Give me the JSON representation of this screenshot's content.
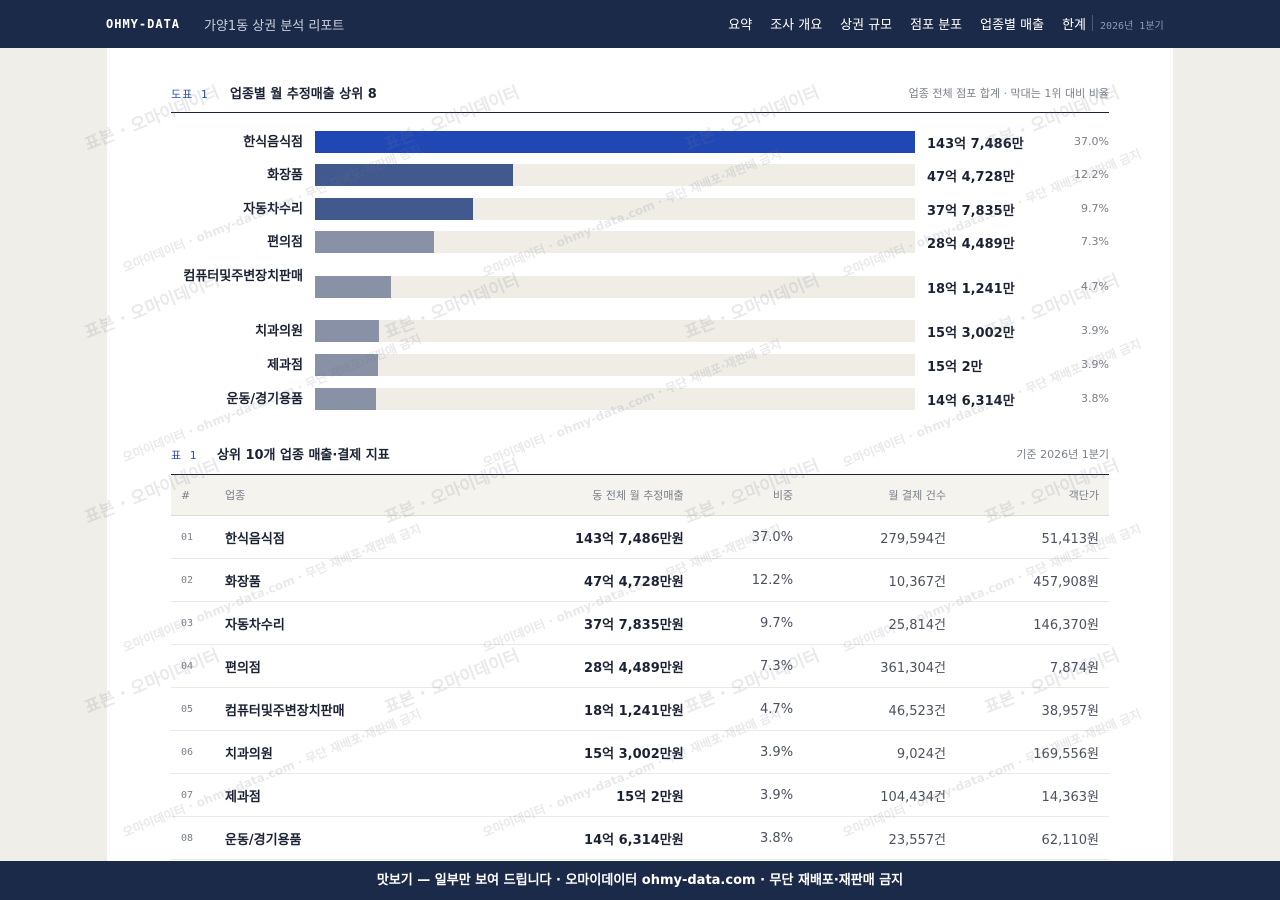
{
  "header": {
    "brand": "OHMY-DATA",
    "report_title": "가양1동 상권 분석 리포트",
    "nav": [
      "요약",
      "조사 개요",
      "상권 규모",
      "점포 분포",
      "업종별 매출",
      "한계"
    ],
    "period": "2026년 1분기"
  },
  "chart_section": {
    "tag": "도표 1",
    "title": "업종별 월 추정매출 상위 8",
    "note": "업종 전체 점포 합계 · 막대는 1위 대비 비율"
  },
  "chart_data": {
    "type": "bar",
    "title": "업종별 월 추정매출 상위 8",
    "categories": [
      "한식음식점",
      "화장품",
      "자동차수리",
      "편의점",
      "컴퓨터및주변장치판매",
      "치과의원",
      "제과점",
      "운동/경기용품"
    ],
    "values": [
      143.7486,
      47.4728,
      37.7835,
      28.4489,
      18.1241,
      15.3002,
      15.0002,
      14.6314
    ],
    "value_labels": [
      "143억 7,486만",
      "47억 4,728만",
      "37억 7,835만",
      "28억 4,489만",
      "18억 1,241만",
      "15억 3,002만",
      "15억 2만",
      "14억 6,314만"
    ],
    "shares": [
      "37.0%",
      "12.2%",
      "9.7%",
      "7.3%",
      "4.7%",
      "3.9%",
      "3.9%",
      "3.8%"
    ],
    "colors": [
      "#1f48b5",
      "#42598f",
      "#42598f",
      "#8891a6",
      "#8891a6",
      "#8891a6",
      "#8891a6",
      "#8891a6"
    ]
  },
  "table_section": {
    "tag": "표 1",
    "title": "상위 10개 업종 매출·결제 지표",
    "note": "기준 2026년 1분기",
    "columns": [
      "#",
      "업종",
      "동 전체 월 추정매출",
      "비중",
      "월 결제 건수",
      "객단가"
    ],
    "rows": [
      [
        "01",
        "한식음식점",
        "143억 7,486만원",
        "37.0%",
        "279,594건",
        "51,413원"
      ],
      [
        "02",
        "화장품",
        "47억 4,728만원",
        "12.2%",
        "10,367건",
        "457,908원"
      ],
      [
        "03",
        "자동차수리",
        "37억 7,835만원",
        "9.7%",
        "25,814건",
        "146,370원"
      ],
      [
        "04",
        "편의점",
        "28억 4,489만원",
        "7.3%",
        "361,304건",
        "7,874원"
      ],
      [
        "05",
        "컴퓨터및주변장치판매",
        "18억 1,241만원",
        "4.7%",
        "46,523건",
        "38,957원"
      ],
      [
        "06",
        "치과의원",
        "15억 3,002만원",
        "3.9%",
        "9,024건",
        "169,556원"
      ],
      [
        "07",
        "제과점",
        "15억 2만원",
        "3.9%",
        "104,434건",
        "14,363원"
      ],
      [
        "08",
        "운동/경기용품",
        "14억 6,314만원",
        "3.8%",
        "23,557건",
        "62,110원"
      ]
    ]
  },
  "watermark": {
    "main": "표본 · 오마이데이터",
    "alt": "오마이데이터 · ohmy-data.com · 무단 재배포·재판매 금지"
  },
  "footer": {
    "text": "맛보기 — 일부만 보여 드립니다 · 오마이데이터 ohmy-data.com · 무단 재배포·재판매 금지"
  }
}
